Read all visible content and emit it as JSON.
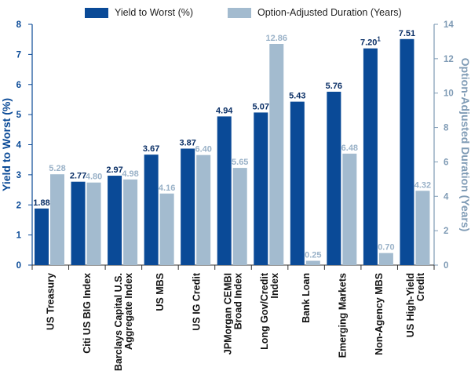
{
  "chart_data": {
    "type": "bar",
    "categories": [
      "US Treasury",
      "Citi US BIG Index",
      "Barclays Capital U.S. Aggregate Index",
      "US MBS",
      "US IG Credit",
      "JPMorgan CEMBI Broad Index",
      "Long Gov/Credit Index",
      "Bank Loan",
      "Emerging Markets",
      "Non-Agency MBS",
      "US High-Yield Credit"
    ],
    "category_lines": [
      [
        "US Treasury"
      ],
      [
        "Citi US BIG Index"
      ],
      [
        "Barclays Capital U.S.",
        "Aggregate Index"
      ],
      [
        "US MBS"
      ],
      [
        "US IG Credit"
      ],
      [
        "JPMorgan CEMBI",
        "Broad Index"
      ],
      [
        "Long Gov/Credit",
        "Index"
      ],
      [
        "Bank Loan"
      ],
      [
        "Emerging Markets"
      ],
      [
        "Non-Agency MBS"
      ],
      [
        "US High-Yield",
        "Credit"
      ]
    ],
    "series": [
      {
        "name": "Yield to Worst (%)",
        "axis": "left",
        "color": "#0a4a97",
        "label_color": "#0a2f66",
        "values": [
          1.88,
          2.77,
          2.97,
          3.67,
          3.87,
          4.94,
          5.07,
          5.43,
          5.76,
          7.2,
          7.51
        ],
        "labels": [
          "1.88",
          "2.77",
          "2.97",
          "3.67",
          "3.87",
          "4.94",
          "5.07",
          "5.43",
          "5.76",
          "7.20",
          "7.51"
        ],
        "footnotes": [
          "",
          "",
          "",
          "",
          "",
          "",
          "",
          "",
          "",
          "1",
          ""
        ]
      },
      {
        "name": "Option-Adjusted Duration (Years)",
        "axis": "right",
        "color": "#a3bbcf",
        "label_color": "#9ab2c8",
        "values": [
          5.28,
          4.8,
          4.98,
          4.16,
          6.4,
          5.65,
          12.86,
          0.25,
          6.48,
          0.7,
          4.32
        ],
        "labels": [
          "5.28",
          "4.80",
          "4.98",
          "4.16",
          "6.40",
          "5.65",
          "12.86",
          "0.25",
          "6.48",
          "0.70",
          "4.32"
        ],
        "footnotes": [
          "",
          "",
          "",
          "",
          "",
          "",
          "",
          "",
          "",
          "",
          ""
        ]
      }
    ],
    "ylabel": "Yield to Worst (%)",
    "y2label": "Option-Adjusted Duration (Years)",
    "ylim": [
      0,
      8
    ],
    "y2lim": [
      0,
      14
    ],
    "yticks": [
      "0",
      "1",
      "2",
      "3",
      "4",
      "5",
      "6",
      "7",
      "8"
    ],
    "y2ticks": [
      "0",
      "2",
      "4",
      "6",
      "8",
      "10",
      "12",
      "14"
    ],
    "grid": false,
    "legend_position": "top-center",
    "axis_color": "#0a4a97",
    "y2_axis_color": "#7f9bb5"
  }
}
